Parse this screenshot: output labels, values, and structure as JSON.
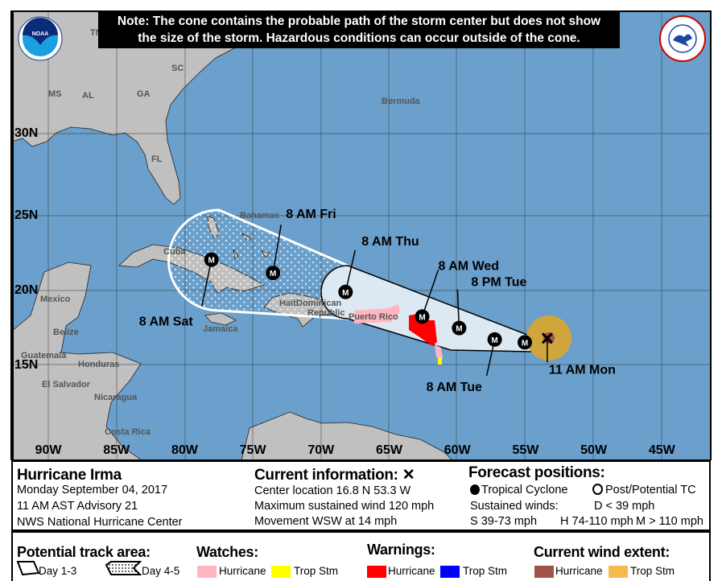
{
  "note": {
    "line1": "Note: The cone contains the probable path of the storm center but does not show",
    "line2": "the size of the storm. Hazardous conditions can occur outside of the cone."
  },
  "logos": {
    "noaa": "NOAA",
    "nws": "NATIONAL WEATHER SERVICE"
  },
  "map": {
    "colors": {
      "ocean": "#6aa0cb",
      "land": "#c0c0c0",
      "cone_day13": "#dce9f2",
      "hurricane_warning": "#ff0000",
      "hurricane_watch": "#ffb6c1",
      "tropstorm_warning": "#0000ff",
      "tropstorm_watch": "#ffff00",
      "hurricane_wind": "#a0524a",
      "tropstorm_wind": "#cfa53c"
    },
    "lat_labels": [
      "30N",
      "25N",
      "20N",
      "15N"
    ],
    "lon_labels": [
      "90W",
      "85W",
      "80W",
      "75W",
      "70W",
      "65W",
      "60W",
      "55W",
      "50W",
      "45W"
    ],
    "places": [
      "TN",
      "MS",
      "AL",
      "GA",
      "SC",
      "FL",
      "Bermuda",
      "Bahamas",
      "Cuba",
      "Haiti",
      "Dominican",
      "Republic",
      "Puerto Rico",
      "Jamaica",
      "Mexico",
      "Belize",
      "Guatemala",
      "Honduras",
      "El Salvador",
      "Nicaragua",
      "Costa Rica"
    ],
    "current": {
      "label": "11 AM Mon",
      "lat": 16.8,
      "lon": 53.3
    },
    "track": [
      {
        "label": "",
        "lat": 16.4,
        "lon": 55.0,
        "intensity": "M"
      },
      {
        "label": "8 AM Tue",
        "lat": 16.6,
        "lon": 57.2,
        "intensity": "M"
      },
      {
        "label": "8 PM Tue",
        "lat": 17.4,
        "lon": 59.8,
        "intensity": "M"
      },
      {
        "label": "8 AM Wed",
        "lat": 18.2,
        "lon": 62.5,
        "intensity": "M"
      },
      {
        "label": "8 AM Thu",
        "lat": 19.9,
        "lon": 68.1,
        "intensity": "M"
      },
      {
        "label": "8 AM Fri",
        "lat": 21.2,
        "lon": 73.4,
        "intensity": "M"
      },
      {
        "label": "8 AM Sat",
        "lat": 22.1,
        "lon": 77.9,
        "intensity": "M"
      }
    ]
  },
  "info": {
    "storm_name": "Hurricane Irma",
    "date": "Monday September 04, 2017",
    "advisory": "11 AM AST Advisory 21",
    "center": "NWS National Hurricane Center",
    "current_title": "Current information:",
    "current_icon": "x-icon",
    "location": "Center location 16.8 N 53.3 W",
    "max_wind": "Maximum sustained wind 120 mph",
    "movement": "Movement WSW at 14 mph",
    "forecast_title": "Forecast positions:",
    "tropical_cyclone": "Tropical Cyclone",
    "post_potential": "Post/Potential TC",
    "sustained_winds": "Sustained winds:",
    "d_class": "D < 39 mph",
    "s_class": "S 39-73 mph",
    "h_class": "H 74-110 mph",
    "m_class": "M > 110 mph"
  },
  "legend": {
    "track_title": "Potential track area:",
    "day13": "Day 1-3",
    "day45": "Day 4-5",
    "watches_title": "Watches:",
    "watch_hurricane": "Hurricane",
    "watch_tropstorm": "Trop Stm",
    "warnings_title": "Warnings:",
    "warning_hurricane": "Hurricane",
    "warning_tropstorm": "Trop Stm",
    "wind_title": "Current wind extent:",
    "wind_hurricane": "Hurricane",
    "wind_tropstorm": "Trop Stm"
  }
}
